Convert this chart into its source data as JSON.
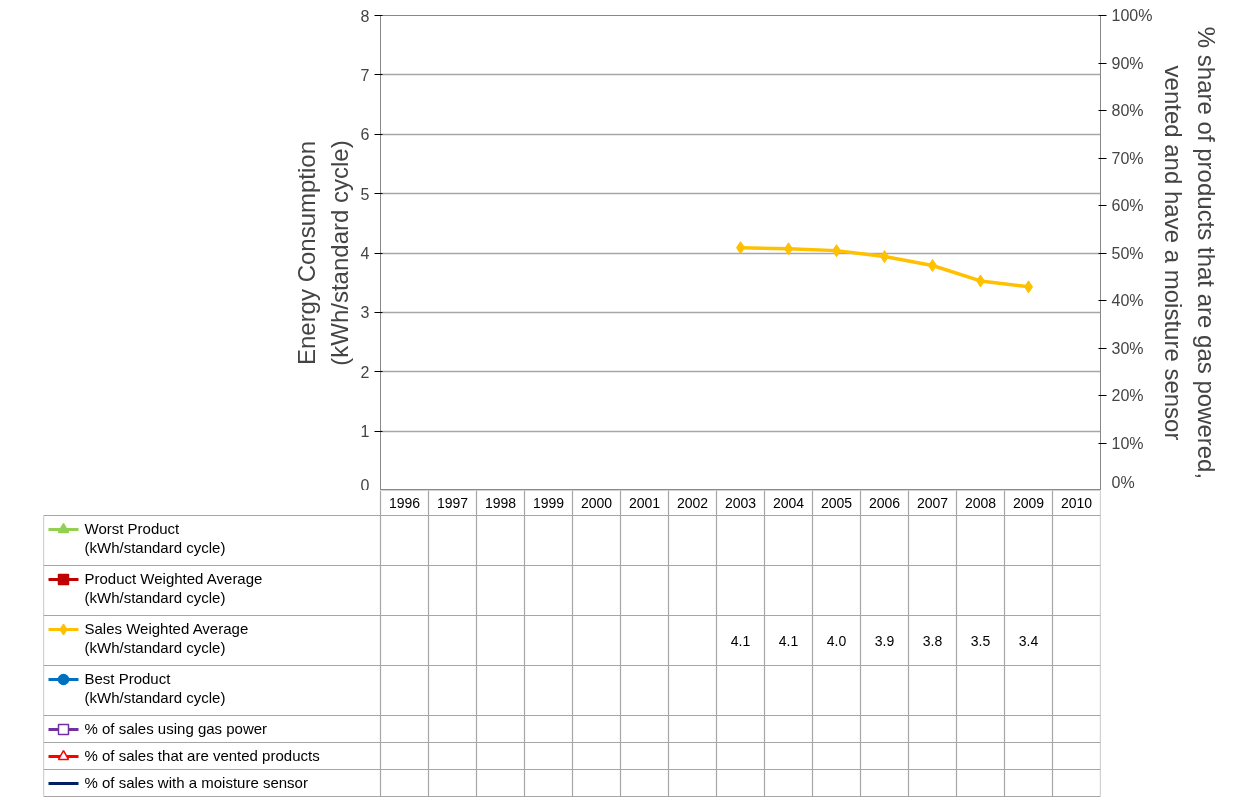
{
  "chart_data": {
    "type": "line",
    "ylabel": "Energy Consumption\n(kWh/standard cycle)",
    "y2label": "% share of products that are gas powered,\nvented and have a moisture sensor",
    "categories": [
      "1996",
      "1997",
      "1998",
      "1999",
      "2000",
      "2001",
      "2002",
      "2003",
      "2004",
      "2005",
      "2006",
      "2007",
      "2008",
      "2009",
      "2010"
    ],
    "ylim": [
      0,
      8
    ],
    "yticks": [
      0,
      1,
      2,
      3,
      4,
      5,
      6,
      7,
      8
    ],
    "y2lim": [
      0,
      100
    ],
    "y2ticks": [
      {
        "value": 0,
        "label": "0%"
      },
      {
        "value": 10,
        "label": "10%"
      },
      {
        "value": 20,
        "label": "20%"
      },
      {
        "value": 30,
        "label": "30%"
      },
      {
        "value": 40,
        "label": "40%"
      },
      {
        "value": 50,
        "label": "50%"
      },
      {
        "value": 60,
        "label": "60%"
      },
      {
        "value": 70,
        "label": "70%"
      },
      {
        "value": 80,
        "label": "80%"
      },
      {
        "value": 90,
        "label": "90%"
      },
      {
        "value": 100,
        "label": "100%"
      }
    ],
    "grid": "y",
    "series": [
      {
        "name": "Worst Product\n(kWh/standard cycle)",
        "color": "#92d050",
        "marker": "triangle",
        "values": [
          null,
          null,
          null,
          null,
          null,
          null,
          null,
          null,
          null,
          null,
          null,
          null,
          null,
          null,
          null
        ]
      },
      {
        "name": "Product Weighted Average\n(kWh/standard cycle)",
        "color": "#c00000",
        "marker": "square",
        "values": [
          null,
          null,
          null,
          null,
          null,
          null,
          null,
          null,
          null,
          null,
          null,
          null,
          null,
          null,
          null
        ]
      },
      {
        "name": "Sales Weighted Average\n(kWh/standard cycle)",
        "color": "#ffc000",
        "marker": "diamond",
        "values": [
          null,
          null,
          null,
          null,
          null,
          null,
          null,
          4.09,
          4.07,
          4.04,
          3.94,
          3.79,
          3.53,
          3.43,
          null
        ],
        "value_labels": [
          null,
          null,
          null,
          null,
          null,
          null,
          null,
          "4.1",
          "4.1",
          "4.0",
          "3.9",
          "3.8",
          "3.5",
          "3.4",
          null
        ]
      },
      {
        "name": "Best Product\n(kWh/standard cycle)",
        "color": "#0070c0",
        "marker": "circle",
        "values": [
          null,
          null,
          null,
          null,
          null,
          null,
          null,
          null,
          null,
          null,
          null,
          null,
          null,
          null,
          null
        ]
      },
      {
        "name": "% of sales using gas power",
        "color": "#7030a0",
        "marker": "square_open",
        "values": [
          null,
          null,
          null,
          null,
          null,
          null,
          null,
          null,
          null,
          null,
          null,
          null,
          null,
          null,
          null
        ]
      },
      {
        "name": "% of sales that are vented products",
        "color": "#ff0000",
        "marker": "triangle_open",
        "values": [
          null,
          null,
          null,
          null,
          null,
          null,
          null,
          null,
          null,
          null,
          null,
          null,
          null,
          null,
          null
        ]
      },
      {
        "name": "% of sales with a moisture sensor",
        "color": "#002060",
        "marker": "cross",
        "values": [
          null,
          null,
          null,
          null,
          null,
          null,
          null,
          null,
          null,
          null,
          null,
          null,
          null,
          null,
          null
        ]
      }
    ]
  }
}
